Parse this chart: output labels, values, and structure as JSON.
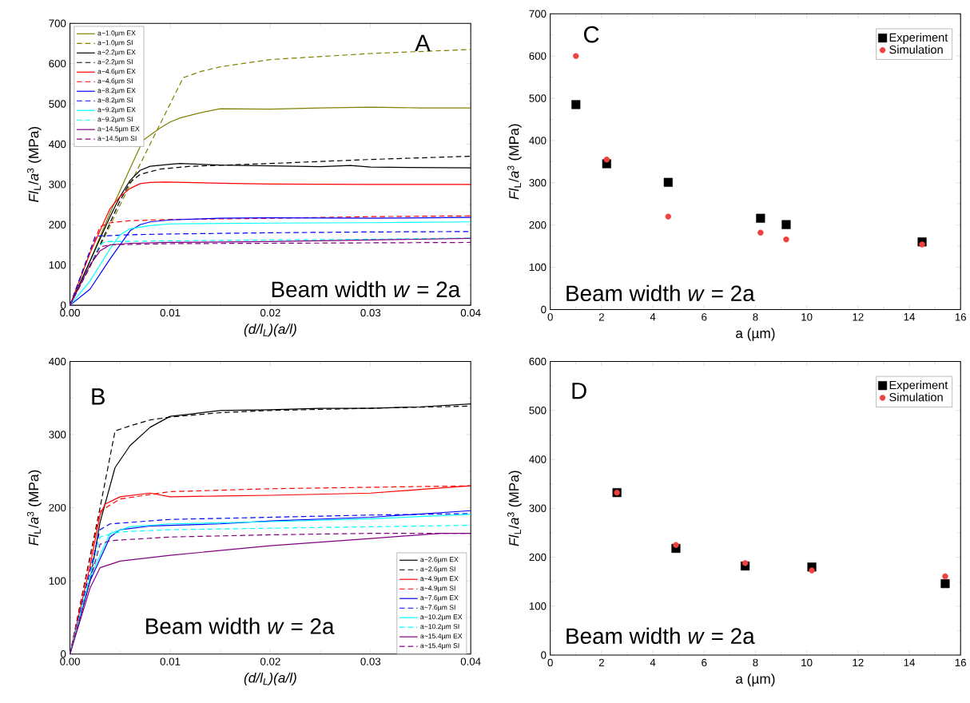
{
  "chart_data": [
    {
      "type": "line",
      "xlabel": "(d/l$_{L}$)(a/l)",
      "ylabel": "*Fl*$_{L}$/*a*$^{3}$ (MPa)",
      "annotations": [
        "A",
        "Beam width *w* = 2a"
      ],
      "xlim": [
        0,
        0.04
      ],
      "ylim": [
        0,
        700
      ],
      "xticks": [
        {
          "value": 0,
          "label": "0.00"
        },
        0.01,
        0.02,
        0.03,
        0.04
      ],
      "yticks": [
        0,
        100,
        200,
        300,
        400,
        500,
        600,
        700
      ],
      "legend": "top left",
      "series": [
        {
          "name": "a~1.0µm  EX",
          "color": "#808000",
          "line_style": "solid",
          "x": [
            0,
            0.002,
            0.004,
            0.006,
            0.0073,
            0.009,
            0.01,
            0.011,
            0.013,
            0.015,
            0.02,
            0.025,
            0.03,
            0.035,
            0.04
          ],
          "values": [
            0,
            110,
            230,
            340,
            410,
            440,
            455,
            465,
            478,
            488,
            487,
            490,
            492,
            490,
            490
          ]
        },
        {
          "name": "a~1.0µm  SI",
          "color": "#808000",
          "line_style": "dashed",
          "x": [
            0,
            0.002,
            0.006,
            0.0113,
            0.013,
            0.015,
            0.02,
            0.03,
            0.04
          ],
          "values": [
            0,
            95,
            300,
            565,
            580,
            592,
            610,
            625,
            635
          ]
        },
        {
          "name": "a~2.2µm  EX",
          "color": "#000000",
          "line_style": "solid",
          "x": [
            0,
            0.002,
            0.004,
            0.005,
            0.006,
            0.007,
            0.008,
            0.01,
            0.011,
            0.015,
            0.02,
            0.025,
            0.028,
            0.03,
            0.035,
            0.04
          ],
          "values": [
            0,
            110,
            220,
            270,
            310,
            335,
            345,
            350,
            352,
            348,
            346,
            344,
            347,
            343,
            342,
            341
          ]
        },
        {
          "name": "a~2.2µm  SI",
          "color": "#000000",
          "line_style": "dashed",
          "x": [
            0,
            0.003,
            0.005,
            0.006,
            0.007,
            0.009,
            0.012,
            0.02,
            0.03,
            0.04
          ],
          "values": [
            0,
            150,
            260,
            305,
            325,
            338,
            345,
            352,
            362,
            370
          ]
        },
        {
          "name": "a~4.6µm  EX",
          "color": "#ff0000",
          "line_style": "solid",
          "x": [
            0,
            0.002,
            0.004,
            0.005,
            0.006,
            0.007,
            0.008,
            0.0095,
            0.015,
            0.02,
            0.03,
            0.04
          ],
          "values": [
            0,
            130,
            240,
            270,
            290,
            302,
            305,
            306,
            303,
            301,
            300,
            300
          ]
        },
        {
          "name": "a~4.6µm  SI",
          "color": "#ff0000",
          "line_style": "dashed",
          "x": [
            0,
            0.003,
            0.004,
            0.006,
            0.01,
            0.02,
            0.03,
            0.04
          ],
          "values": [
            0,
            195,
            205,
            210,
            213,
            216,
            220,
            222
          ]
        },
        {
          "name": "a~8.2µm  EX",
          "color": "#0000ff",
          "line_style": "solid",
          "x": [
            0,
            0.002,
            0.004,
            0.005,
            0.006,
            0.007,
            0.008,
            0.01,
            0.015,
            0.02,
            0.03,
            0.04
          ],
          "values": [
            0,
            40,
            115,
            150,
            185,
            200,
            207,
            212,
            216,
            217,
            216,
            218
          ]
        },
        {
          "name": "a~8.2µm  SI",
          "color": "#0000ff",
          "line_style": "dashed",
          "x": [
            0,
            0.0025,
            0.003,
            0.006,
            0.01,
            0.02,
            0.03,
            0.04
          ],
          "values": [
            0,
            170,
            172,
            175,
            177,
            180,
            182,
            183
          ]
        },
        {
          "name": "a~9.2µm  EX",
          "color": "#00ffff",
          "line_style": "solid",
          "x": [
            0,
            0.002,
            0.004,
            0.005,
            0.006,
            0.008,
            0.01,
            0.02,
            0.03,
            0.04
          ],
          "values": [
            0,
            60,
            140,
            175,
            190,
            198,
            202,
            204,
            205,
            207
          ]
        },
        {
          "name": "a~9.2µm  SI",
          "color": "#00ffff",
          "line_style": "dashed",
          "x": [
            0,
            0.003,
            0.0035,
            0.01,
            0.02,
            0.03,
            0.04
          ],
          "values": [
            0,
            150,
            158,
            160,
            162,
            164,
            167
          ]
        },
        {
          "name": "a~14.5µm  EX",
          "color": "#800080",
          "line_style": "solid",
          "x": [
            0,
            0.002,
            0.003,
            0.004,
            0.006,
            0.01,
            0.02,
            0.03,
            0.04
          ],
          "values": [
            0,
            100,
            135,
            150,
            154,
            156,
            158,
            162,
            166
          ]
        },
        {
          "name": "a~14.5µm  SI",
          "color": "#800080",
          "line_style": "dashed",
          "x": [
            0,
            0.003,
            0.004,
            0.01,
            0.02,
            0.03,
            0.04
          ],
          "values": [
            0,
            145,
            150,
            153,
            154,
            155,
            156
          ]
        }
      ]
    },
    {
      "type": "scatter",
      "xlabel": "a (µm)",
      "ylabel": "*Fl*$_{L}$/*a*$^{3}$ (MPa)",
      "annotations": [
        "C",
        "Beam width *w* = 2a"
      ],
      "xlim": [
        0,
        16
      ],
      "ylim": [
        0,
        700
      ],
      "xticks": [
        0,
        2,
        4,
        6,
        8,
        10,
        12,
        14,
        16
      ],
      "yticks": [
        0,
        100,
        200,
        300,
        400,
        500,
        600,
        700
      ],
      "legend": "top right",
      "x": [
        1,
        2.2,
        4.6,
        8.2,
        9.2,
        14.5
      ],
      "series": [
        {
          "name": "Experiment",
          "color": "#000000",
          "marker": "square",
          "values": [
            485,
            345,
            301,
            216,
            201,
            160
          ]
        },
        {
          "name": "Simulation",
          "color": "#f04040",
          "marker": "circle",
          "values": [
            600,
            355,
            220,
            182,
            166,
            154
          ]
        }
      ]
    },
    {
      "type": "line",
      "xlabel": "(d/l$_{L}$)(a/l)",
      "ylabel": "*Fl*$_{L}$/*a*$^{3}$ (MPa)",
      "annotations": [
        "B",
        "Beam width *w* = 2a"
      ],
      "xlim": [
        0,
        0.04
      ],
      "ylim": [
        0,
        400
      ],
      "xticks": [
        {
          "value": 0,
          "label": "0.00"
        },
        0.01,
        0.02,
        0.03,
        0.04
      ],
      "yticks": [
        0,
        100,
        200,
        300,
        400
      ],
      "legend": "bottom right",
      "series": [
        {
          "name": "a~2.6µm  EX",
          "color": "#000000",
          "line_style": "solid",
          "x": [
            0,
            0.002,
            0.003,
            0.0045,
            0.006,
            0.008,
            0.01,
            0.012,
            0.015,
            0.02,
            0.025,
            0.03,
            0.035,
            0.04
          ],
          "values": [
            0,
            100,
            180,
            255,
            285,
            310,
            325,
            328,
            333,
            334,
            336,
            336,
            338,
            342
          ]
        },
        {
          "name": "a~2.6µm  SI",
          "color": "#000000",
          "line_style": "dashed",
          "x": [
            0,
            0.003,
            0.0045,
            0.006,
            0.008,
            0.01,
            0.015,
            0.02,
            0.03,
            0.04
          ],
          "values": [
            0,
            200,
            305,
            312,
            320,
            324,
            330,
            333,
            336,
            339
          ]
        },
        {
          "name": "a~4.9µm  EX",
          "color": "#ff0000",
          "line_style": "solid",
          "x": [
            0,
            0.002,
            0.003,
            0.0035,
            0.005,
            0.008,
            0.01,
            0.015,
            0.02,
            0.03,
            0.035,
            0.04
          ],
          "values": [
            0,
            120,
            190,
            205,
            215,
            220,
            215,
            216,
            217,
            220,
            225,
            230
          ]
        },
        {
          "name": "a~4.9µm  SI",
          "color": "#ff0000",
          "line_style": "dashed",
          "x": [
            0,
            0.003,
            0.005,
            0.01,
            0.02,
            0.03,
            0.04
          ],
          "values": [
            0,
            195,
            212,
            222,
            226,
            228,
            230
          ]
        },
        {
          "name": "a~7.6µm  EX",
          "color": "#0000ff",
          "line_style": "solid",
          "x": [
            0,
            0.002,
            0.004,
            0.005,
            0.008,
            0.015,
            0.02,
            0.03,
            0.04
          ],
          "values": [
            0,
            100,
            160,
            170,
            175,
            178,
            182,
            187,
            196
          ]
        },
        {
          "name": "a~7.6µm  SI",
          "color": "#0000ff",
          "line_style": "dashed",
          "x": [
            0,
            0.003,
            0.004,
            0.01,
            0.02,
            0.03,
            0.04
          ],
          "values": [
            0,
            170,
            178,
            184,
            187,
            190,
            192
          ]
        },
        {
          "name": "a~10.2µm  EX",
          "color": "#00ffff",
          "line_style": "solid",
          "x": [
            0,
            0.002,
            0.004,
            0.006,
            0.01,
            0.02,
            0.03,
            0.04
          ],
          "values": [
            0,
            105,
            165,
            174,
            178,
            181,
            185,
            191
          ]
        },
        {
          "name": "a~10.2µm  SI",
          "color": "#00ffff",
          "line_style": "dashed",
          "x": [
            0,
            0.003,
            0.005,
            0.01,
            0.02,
            0.03,
            0.04
          ],
          "values": [
            0,
            160,
            167,
            170,
            172,
            174,
            176
          ]
        },
        {
          "name": "a~15.4µm  EX",
          "color": "#800080",
          "line_style": "solid",
          "x": [
            0,
            0.002,
            0.003,
            0.005,
            0.01,
            0.02,
            0.03,
            0.037,
            0.04
          ],
          "values": [
            0,
            90,
            118,
            127,
            135,
            148,
            158,
            165,
            165
          ]
        },
        {
          "name": "a~15.4µm  SI",
          "color": "#800080",
          "line_style": "dashed",
          "x": [
            0,
            0.003,
            0.004,
            0.01,
            0.02,
            0.03,
            0.04
          ],
          "values": [
            0,
            150,
            155,
            160,
            163,
            165,
            165
          ]
        }
      ]
    },
    {
      "type": "scatter",
      "xlabel": "a (µm)",
      "ylabel": "*Fl*$_{L}$/*a*$^{3}$ (MPa)",
      "annotations": [
        "D",
        "Beam width *w* = 2a"
      ],
      "xlim": [
        0,
        16
      ],
      "ylim": [
        0,
        600
      ],
      "xticks": [
        0,
        2,
        4,
        6,
        8,
        10,
        12,
        14,
        16
      ],
      "yticks": [
        0,
        100,
        200,
        300,
        400,
        500,
        600
      ],
      "legend": "top right",
      "x": [
        2.6,
        4.9,
        7.6,
        10.2,
        15.4
      ],
      "series": [
        {
          "name": "Experiment",
          "color": "#000000",
          "marker": "square",
          "values": [
            332,
            218,
            182,
            180,
            146
          ]
        },
        {
          "name": "Simulation",
          "color": "#f04040",
          "marker": "circle",
          "values": [
            332,
            225,
            188,
            173,
            161
          ]
        }
      ]
    }
  ]
}
